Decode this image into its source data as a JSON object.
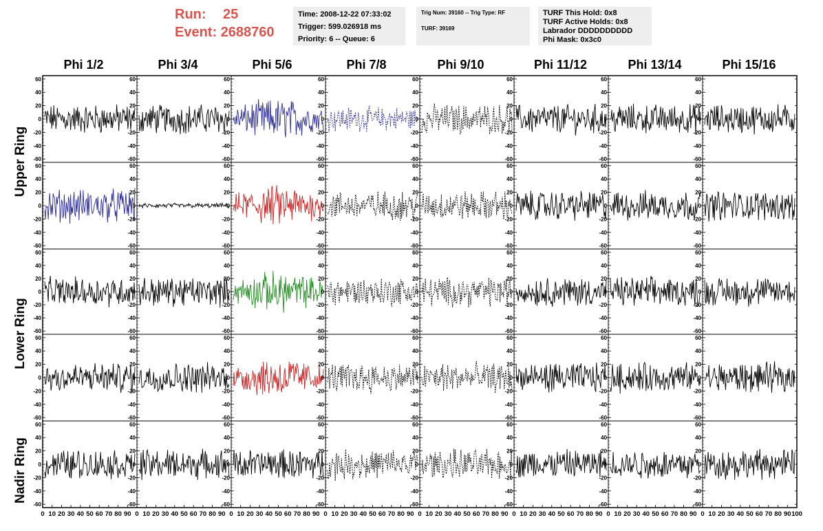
{
  "run": {
    "run_label": "Run:",
    "run_value": "25",
    "event_label": "Event:",
    "event_value": "2688760"
  },
  "info": {
    "time": "Time: 2008-12-22 07:33:02",
    "trigger": "Trigger: 599.026918 ms",
    "priority": "Priority: 6 -- Queue: 6",
    "trig_num": "Trig Num: 39160 -- Trig Type: RF",
    "turf": "TURF: 39169",
    "turf_this_hold": "TURF This Hold: 0x8",
    "turf_active_holds": "TURF Active Holds: 0x8",
    "labrador": "Labrador DDDDDDDDDD",
    "phi_mask": "Phi Mask: 0x3c0"
  },
  "columns": [
    "Phi 1/2",
    "Phi 3/4",
    "Phi 5/6",
    "Phi 7/8",
    "Phi 9/10",
    "Phi 11/12",
    "Phi 13/14",
    "Phi 15/16"
  ],
  "rings": [
    "Upper Ring",
    "Lower Ring",
    "Nadir Ring"
  ],
  "y_ticks": [
    "60",
    "40",
    "20",
    "0",
    "-20",
    "-40",
    "-60"
  ],
  "x_ticks": [
    "0",
    "10",
    "20",
    "30",
    "40",
    "50",
    "60",
    "70",
    "80",
    "90",
    "100"
  ],
  "colors": {
    "run_text": "#d9534f",
    "blue": "#2b2b9a",
    "red": "#cc2222",
    "green": "#228b22",
    "black": "#000000"
  },
  "chart_data": {
    "type": "line",
    "xlim": [
      0,
      100
    ],
    "ylim": [
      -65,
      65
    ],
    "panel_styles": [
      [
        "black",
        "black",
        "blue",
        "blue-dashed",
        "black-dashed",
        "black",
        "black",
        "black"
      ],
      [
        "blue",
        "black-flat",
        "red",
        "black-dashed",
        "black-dashed",
        "black",
        "black",
        "black"
      ],
      [
        "black",
        "black",
        "green",
        "black-dashed",
        "black-dashed",
        "black",
        "black",
        "black"
      ],
      [
        "black",
        "black",
        "red",
        "black-dashed",
        "black-dashed",
        "black",
        "black",
        "black"
      ],
      [
        "black",
        "black",
        "black",
        "black-dashed",
        "black-dashed",
        "black",
        "black",
        "black"
      ]
    ]
  }
}
